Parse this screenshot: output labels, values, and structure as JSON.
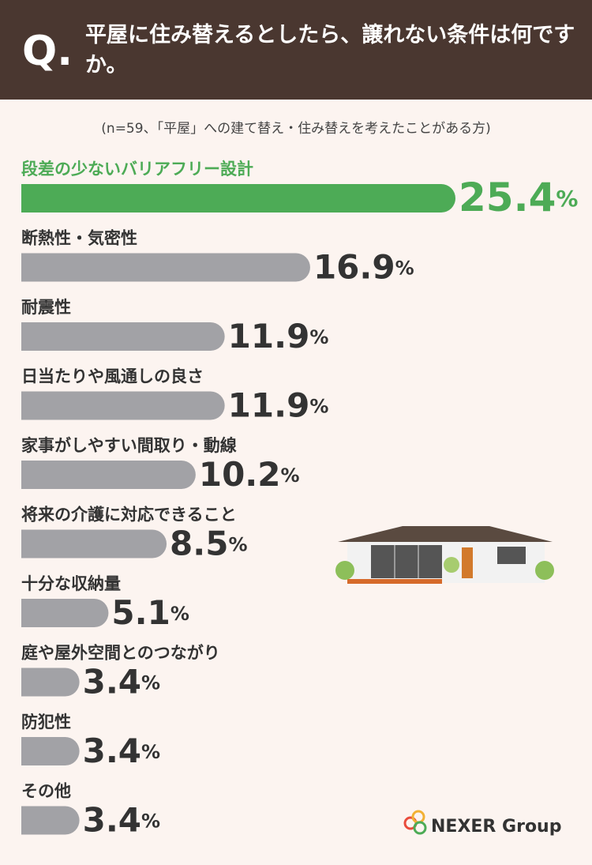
{
  "chart_data": {
    "type": "bar",
    "orientation": "horizontal",
    "question_mark": "Q.",
    "title": "平屋に住み替えるとしたら、譲れない条件は何ですか。",
    "subtitle": "(n=59、「平屋」への建て替え・住み替えを考えたことがある方)",
    "categories": [
      "段差の少ないバリアフリー設計",
      "断熱性・気密性",
      "耐震性",
      "日当たりや風通しの良さ",
      "家事がしやすい間取り・動線",
      "将来の介護に対応できること",
      "十分な収納量",
      "庭や屋外空間とのつながり",
      "防犯性",
      "その他"
    ],
    "values": [
      25.4,
      16.9,
      11.9,
      11.9,
      10.2,
      8.5,
      5.1,
      3.4,
      3.4,
      3.4
    ],
    "value_labels": [
      "25.4%",
      "16.9%",
      "11.9%",
      "11.9%",
      "10.2%",
      "8.5%",
      "5.1%",
      "3.4%",
      "3.4%",
      "3.4%"
    ],
    "color": "#a2a2a6",
    "highlight_color": "#4dab56",
    "highlight_index": 0,
    "logo": "NEXER Group"
  }
}
